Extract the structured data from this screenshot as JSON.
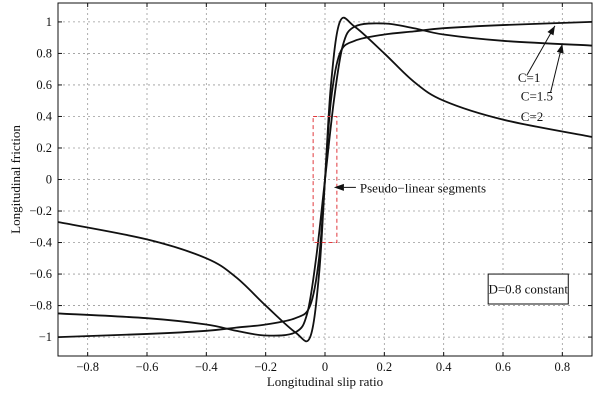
{
  "chart_data": {
    "type": "line",
    "xlabel": "Longitudinal slip ratio",
    "ylabel": "Longitudinal friction",
    "xlim": [
      -0.9,
      0.9
    ],
    "ylim": [
      -1.12,
      1.12
    ],
    "grid": true,
    "x_ticks": [
      -0.8,
      -0.6,
      -0.4,
      -0.2,
      0,
      0.2,
      0.4,
      0.6,
      0.8
    ],
    "x_tick_labels": [
      "−0.8",
      "−0.6",
      "−0.4",
      "−0.2",
      "0",
      "0.2",
      "0.4",
      "0.6",
      "0.8"
    ],
    "y_ticks": [
      1,
      0.8,
      0.6,
      0.4,
      0.2,
      0,
      -0.2,
      -0.4,
      -0.6,
      -0.8,
      -1
    ],
    "y_tick_labels": [
      "1",
      "0.8",
      "0.6",
      "0.4",
      "0.2",
      "0",
      "−0.2",
      "−0.4",
      "−0.6",
      "−0.8",
      "−1"
    ],
    "series": [
      {
        "name": "C=1",
        "x": [
          -0.9,
          -0.6,
          -0.4,
          -0.3,
          -0.2,
          -0.1,
          -0.05,
          -0.02,
          0,
          0.02,
          0.05,
          0.1,
          0.2,
          0.3,
          0.4,
          0.6,
          0.9
        ],
        "y": [
          -1.0,
          -0.98,
          -0.96,
          -0.94,
          -0.92,
          -0.88,
          -0.8,
          -0.5,
          0,
          0.5,
          0.8,
          0.88,
          0.92,
          0.94,
          0.96,
          0.98,
          1.0
        ]
      },
      {
        "name": "C=1.5",
        "x": [
          -0.9,
          -0.6,
          -0.4,
          -0.3,
          -0.2,
          -0.1,
          -0.06,
          -0.03,
          0,
          0.03,
          0.06,
          0.1,
          0.2,
          0.3,
          0.4,
          0.6,
          0.9
        ],
        "y": [
          -0.85,
          -0.88,
          -0.92,
          -0.96,
          -0.99,
          -0.97,
          -0.85,
          -0.5,
          0,
          0.5,
          0.85,
          0.97,
          0.99,
          0.96,
          0.92,
          0.88,
          0.85
        ]
      },
      {
        "name": "C=2",
        "x": [
          -0.9,
          -0.6,
          -0.4,
          -0.3,
          -0.2,
          -0.1,
          -0.05,
          -0.02,
          0,
          0.02,
          0.05,
          0.1,
          0.2,
          0.3,
          0.4,
          0.6,
          0.9
        ],
        "y": [
          -0.27,
          -0.38,
          -0.5,
          -0.62,
          -0.8,
          -0.97,
          -1.0,
          -0.6,
          0,
          0.6,
          1.0,
          0.97,
          0.8,
          0.62,
          0.5,
          0.38,
          0.27
        ]
      }
    ],
    "annotations": {
      "curve_labels": [
        "C=1",
        "C=1.5",
        "C=2"
      ],
      "pseudo_linear": "Pseudo−linear segments",
      "pseudo_linear_box_x": [
        -0.04,
        0.04
      ],
      "pseudo_linear_box_y": [
        -0.4,
        0.4
      ],
      "legend_box": "D=0.8 constant",
      "legend_position": "bottom-right"
    },
    "colors": {
      "line": "#111111",
      "grid": "#9a9a9a",
      "dashed_box": "#e0393e"
    }
  }
}
